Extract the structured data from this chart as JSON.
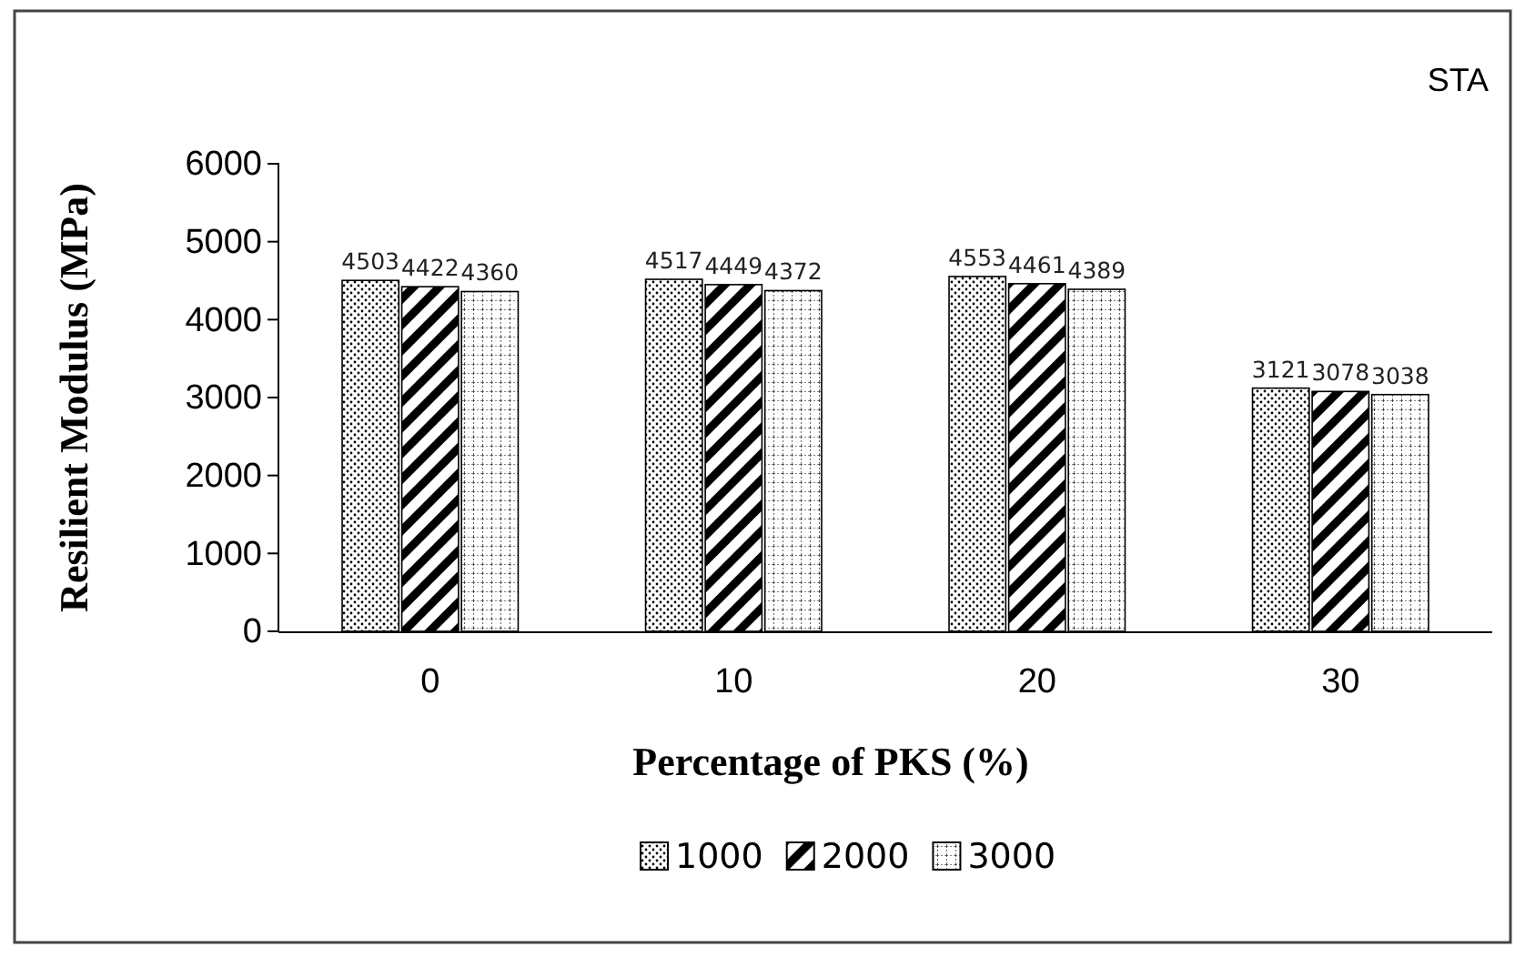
{
  "chart_data": {
    "type": "bar",
    "title": "STA",
    "xlabel": "Percentage of PKS (%)",
    "ylabel": "Resilient Modulus (MPa)",
    "categories": [
      "0",
      "10",
      "20",
      "30"
    ],
    "series": [
      {
        "name": "1000",
        "color": "#000000",
        "values": [
          4503,
          4517,
          4553,
          3121
        ]
      },
      {
        "name": "2000",
        "color": "#000000",
        "values": [
          4422,
          4449,
          4461,
          3078
        ]
      },
      {
        "name": "3000",
        "color": "#000000",
        "values": [
          4360,
          4372,
          4389,
          3038
        ]
      }
    ],
    "ylim": [
      0,
      6000
    ],
    "yticks": [
      0,
      1000,
      2000,
      3000,
      4000,
      5000,
      6000
    ],
    "grid": false,
    "legend": "bottom",
    "data_labels": true
  }
}
